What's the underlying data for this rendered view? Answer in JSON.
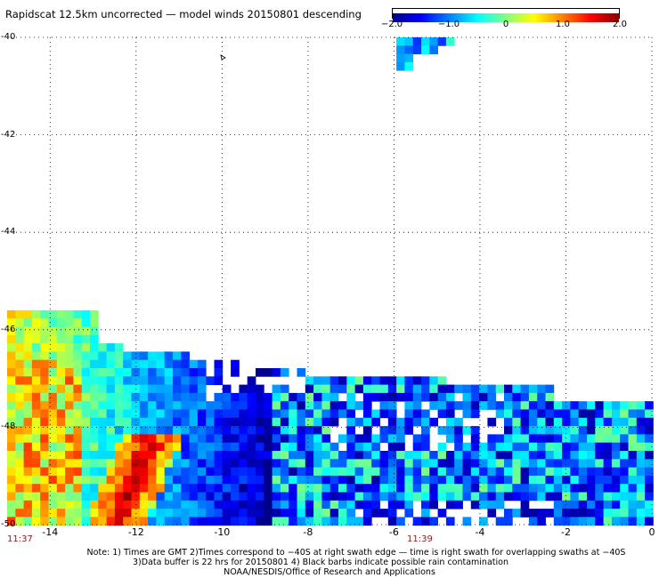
{
  "header": {
    "title": "Rapidscat 12.5km uncorrected — model winds 20150801 descending"
  },
  "colorbar": {
    "ticks": [
      {
        "value": -2.0,
        "label": "−2.0"
      },
      {
        "value": -1.0,
        "label": "−1.0"
      },
      {
        "value": 0,
        "label": "0"
      },
      {
        "value": 1.0,
        "label": "1.0"
      },
      {
        "value": 2.0,
        "label": "2.0"
      }
    ],
    "range": [
      -2.0,
      2.0
    ],
    "colors": [
      "#00008b",
      "#0000ff",
      "#0080ff",
      "#00ffff",
      "#80ff80",
      "#ffff00",
      "#ff8000",
      "#ff0000",
      "#8b0000"
    ]
  },
  "axes": {
    "lat_labels": [
      "-40",
      "-42",
      "-44",
      "-46",
      "-48",
      "-50"
    ],
    "lon_labels": [
      "-14",
      "-12",
      "-10",
      "-8",
      "-6",
      "-4",
      "-2",
      "0"
    ],
    "lat_range": [
      -50,
      -40
    ],
    "lon_range": [
      -15,
      0
    ],
    "grid": true
  },
  "times": {
    "left": "11:37",
    "right": "11:39"
  },
  "notes": {
    "line1": "Note: 1) Times are GMT 2)Times correspond to −40S at right swath edge — time is right swath for overlapping swaths at −40S",
    "line2": "3)Data buffer is 22 hrs for 20150801 4) Black barbs indicate possible rain contamination",
    "line3": "NOAA/NESDIS/Office of Research and Applications"
  }
}
